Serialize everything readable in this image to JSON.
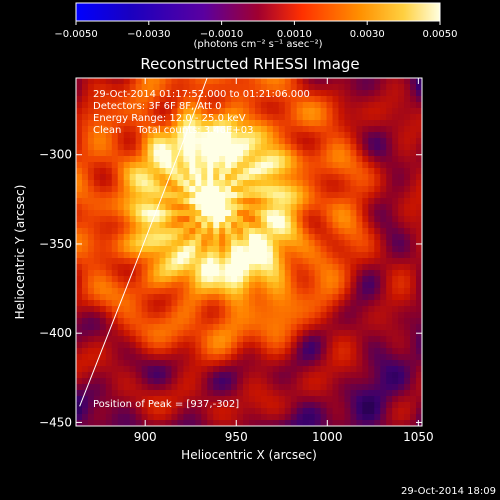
{
  "chart_data": {
    "type": "heatmap",
    "title": "Reconstructed RHESSI Image",
    "xlabel": "Heliocentric X (arcsec)",
    "ylabel": "Heliocentric Y (arcsec)",
    "xlim": [
      862,
      1052
    ],
    "ylim": [
      -452,
      -257
    ],
    "x_ticks": [
      900,
      950,
      1000,
      1050
    ],
    "y_ticks": [
      -300,
      -350,
      -400,
      -450
    ],
    "x_tick_labels": [
      "900",
      "950",
      "1000",
      "1050"
    ],
    "y_tick_labels": [
      "−300",
      "−350",
      "−400",
      "−450"
    ],
    "colorbar": {
      "range": [
        -0.005,
        0.005
      ],
      "ticks": [
        -0.005,
        -0.003,
        -0.001,
        0.001,
        0.003,
        0.005
      ],
      "tick_labels": [
        "−0.0050",
        "−0.0030",
        "−0.0010",
        "0.0010",
        "0.0030",
        "0.0050"
      ],
      "units": "(photons cm⁻² s⁻¹ asec⁻²)",
      "colormap": [
        "#000000",
        "#1a00a0",
        "#6a00a0",
        "#c01020",
        "#ff5000",
        "#ffa000",
        "#ffe060",
        "#ffffff"
      ]
    },
    "annotations": [
      "29-Oct-2014 01:17:52.000 to 01:21:06.000",
      "Detectors: 3F 6F 8F, Att 0",
      "Energy Range: 12.0 - 25.0 keV",
      "Clean     Total counts: 3.46E+03"
    ],
    "peak_label": "Position of Peak = [937,-302]",
    "peak": [
      937,
      -302
    ],
    "limb_line": [
      [
        864,
        -441
      ],
      [
        896,
        -358
      ],
      [
        920,
        -295
      ],
      [
        934,
        -257
      ]
    ]
  },
  "footer": {
    "timestamp": "29-Oct-2014 18:09"
  }
}
